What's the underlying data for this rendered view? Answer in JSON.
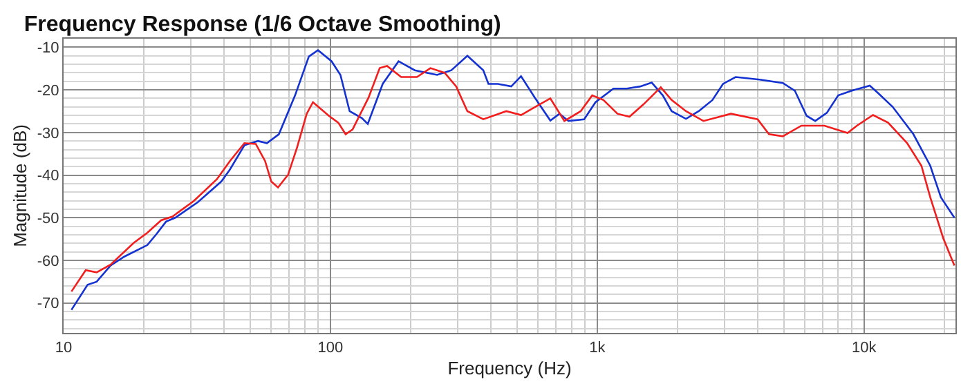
{
  "chart_data": {
    "type": "line",
    "title": "Frequency Response (1/6 Octave Smoothing)",
    "xlabel": "Frequency (Hz)",
    "ylabel": "Magnitude (dB)",
    "log": "x",
    "grid": true,
    "marker": "none",
    "line_style": "solid",
    "xlim": [
      10,
      22000
    ],
    "xticks": [
      10,
      100,
      {
        "value": 1000,
        "label": "1k"
      },
      {
        "value": 10000,
        "label": "10k"
      }
    ],
    "ylim": [
      -77,
      -8
    ],
    "yticks": [
      -10,
      -20,
      -30,
      -40,
      -50,
      -60,
      -70
    ],
    "series": [
      {
        "color": "#1432d2",
        "x": [
          10.7,
          12.3,
          13.3,
          15,
          16.9,
          20.6,
          22.3,
          24.2,
          26.2,
          31.9,
          39,
          42,
          47.6,
          53.5,
          57.8,
          64.1,
          73.7,
          83,
          89.8,
          101,
          109,
          118,
          131,
          138,
          157,
          180,
          207,
          251,
          284,
          326,
          374,
          391,
          424,
          476,
          518,
          583,
          667,
          722,
          780,
          893,
          985,
          1150,
          1290,
          1450,
          1600,
          1760,
          1900,
          2150,
          2400,
          2700,
          2960,
          3300,
          4060,
          4960,
          5500,
          6090,
          6560,
          7250,
          8000,
          9000,
          10500,
          11300,
          12800,
          15300,
          17700,
          19400,
          21800
        ],
        "values": [
          -71.6,
          -65.7,
          -65,
          -61.2,
          -59.1,
          -56.4,
          -53.8,
          -50.9,
          -50,
          -46.3,
          -41.5,
          -38.7,
          -33,
          -32,
          -32.5,
          -30.4,
          -21.3,
          -12.2,
          -10.7,
          -13.3,
          -16.5,
          -25,
          -26.6,
          -28,
          -18.6,
          -13.3,
          -15.4,
          -16.5,
          -15.4,
          -12,
          -15.4,
          -18.6,
          -18.6,
          -19.2,
          -16.8,
          -21.8,
          -27.2,
          -25.6,
          -27.3,
          -26.9,
          -22.9,
          -19.7,
          -19.7,
          -19.2,
          -18.3,
          -21.3,
          -25,
          -26.8,
          -25,
          -22.4,
          -18.6,
          -17,
          -17.6,
          -18.4,
          -20.2,
          -26.1,
          -27.3,
          -25.4,
          -21.3,
          -20.2,
          -19,
          -20.8,
          -24,
          -30.4,
          -37.8,
          -45.2,
          -50
        ]
      },
      {
        "color": "#f21d1d",
        "x": [
          10.7,
          12.1,
          13.3,
          15,
          18.3,
          20.6,
          23.2,
          25.6,
          30.7,
          37.5,
          42,
          47.6,
          52.5,
          56.9,
          60,
          63.6,
          69.4,
          75,
          81.5,
          86,
          98.7,
          107,
          114,
          121,
          139,
          153,
          163,
          184,
          211,
          237,
          268,
          296,
          326,
          374,
          456,
          518,
          667,
          753,
          867,
          957,
          1055,
          1190,
          1320,
          1490,
          1730,
          1900,
          2150,
          2500,
          3170,
          3990,
          4400,
          4960,
          5820,
          7100,
          8670,
          9400,
          10800,
          12300,
          14500,
          16400,
          17700,
          19800,
          21800
        ],
        "values": [
          -67.3,
          -62.3,
          -62.8,
          -61,
          -55.9,
          -53.5,
          -50.6,
          -49.7,
          -46.1,
          -41,
          -36.7,
          -32.5,
          -32.7,
          -36.7,
          -41.5,
          -42.9,
          -39.9,
          -33.5,
          -25.6,
          -22.9,
          -26.1,
          -27.7,
          -30.4,
          -29.3,
          -21.8,
          -14.9,
          -14.4,
          -17,
          -17,
          -14.9,
          -16,
          -19.2,
          -25,
          -26.9,
          -25,
          -25.9,
          -22,
          -27.3,
          -25,
          -21.3,
          -22.4,
          -25.6,
          -26.3,
          -23.4,
          -19.4,
          -22.4,
          -25,
          -27.3,
          -25.6,
          -26.9,
          -30.4,
          -30.9,
          -28.4,
          -28.4,
          -30.1,
          -28.4,
          -25.9,
          -27.7,
          -32.5,
          -37.8,
          -45.2,
          -54.8,
          -61.2
        ]
      }
    ]
  }
}
